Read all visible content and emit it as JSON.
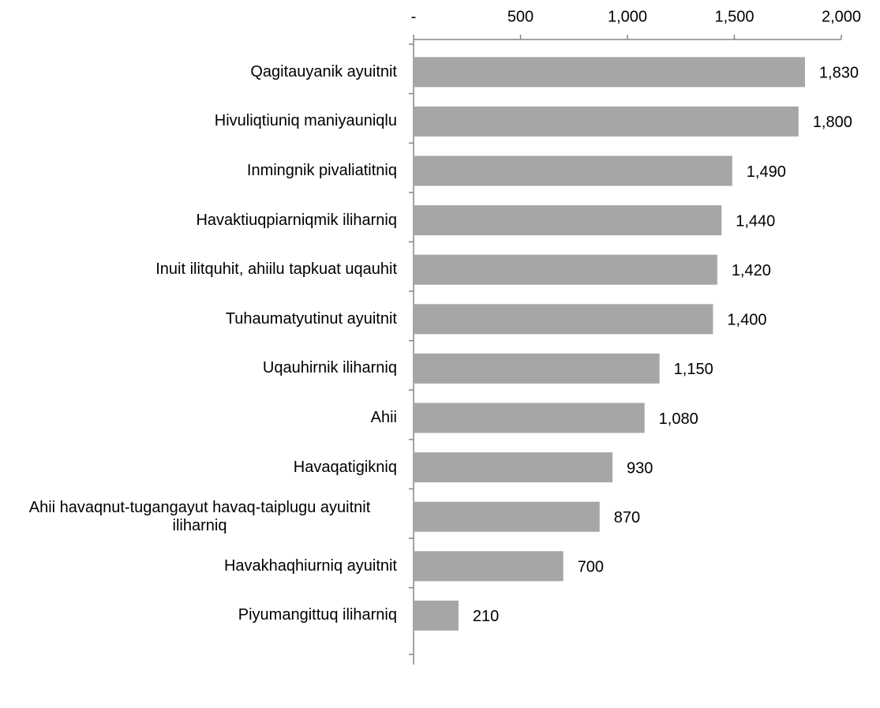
{
  "chart_data": {
    "type": "bar",
    "orientation": "horizontal",
    "categories": [
      "Qagitauyanik ayuitnit",
      "Hivuliqtiuniq maniyauniqlu",
      "Inmingnik pivaliatitniq",
      "Havaktiuqpiarniqmik iliharniq",
      "Inuit ilitquhit, ahiilu tapkuat uqauhit",
      "Tuhaumatyutinut ayuitnit",
      "Uqauhirnik iliharniq",
      "Ahii",
      "Havaqatigikniq",
      "Ahii havaqnut-tugangayut havaq-taiplugu ayuitnit iliharniq",
      "Havakhaqhiurniq ayuitnit",
      "Piyumangittuq iliharniq"
    ],
    "values": [
      1830,
      1800,
      1490,
      1440,
      1420,
      1400,
      1150,
      1080,
      930,
      870,
      700,
      210
    ],
    "value_labels": [
      "1,830",
      "1,800",
      "1,490",
      "1,440",
      "1,420",
      "1,400",
      "1,150",
      "1,080",
      "930",
      "870",
      "700",
      "210"
    ],
    "color": "#a6a6a6",
    "xlim": [
      0,
      2000
    ],
    "xticks": [
      {
        "value": 0,
        "label": "-"
      },
      500,
      {
        "value": 1000,
        "label": "1,000"
      },
      {
        "value": 1500,
        "label": "1,500"
      },
      {
        "value": 2000,
        "label": "2,000"
      }
    ]
  }
}
